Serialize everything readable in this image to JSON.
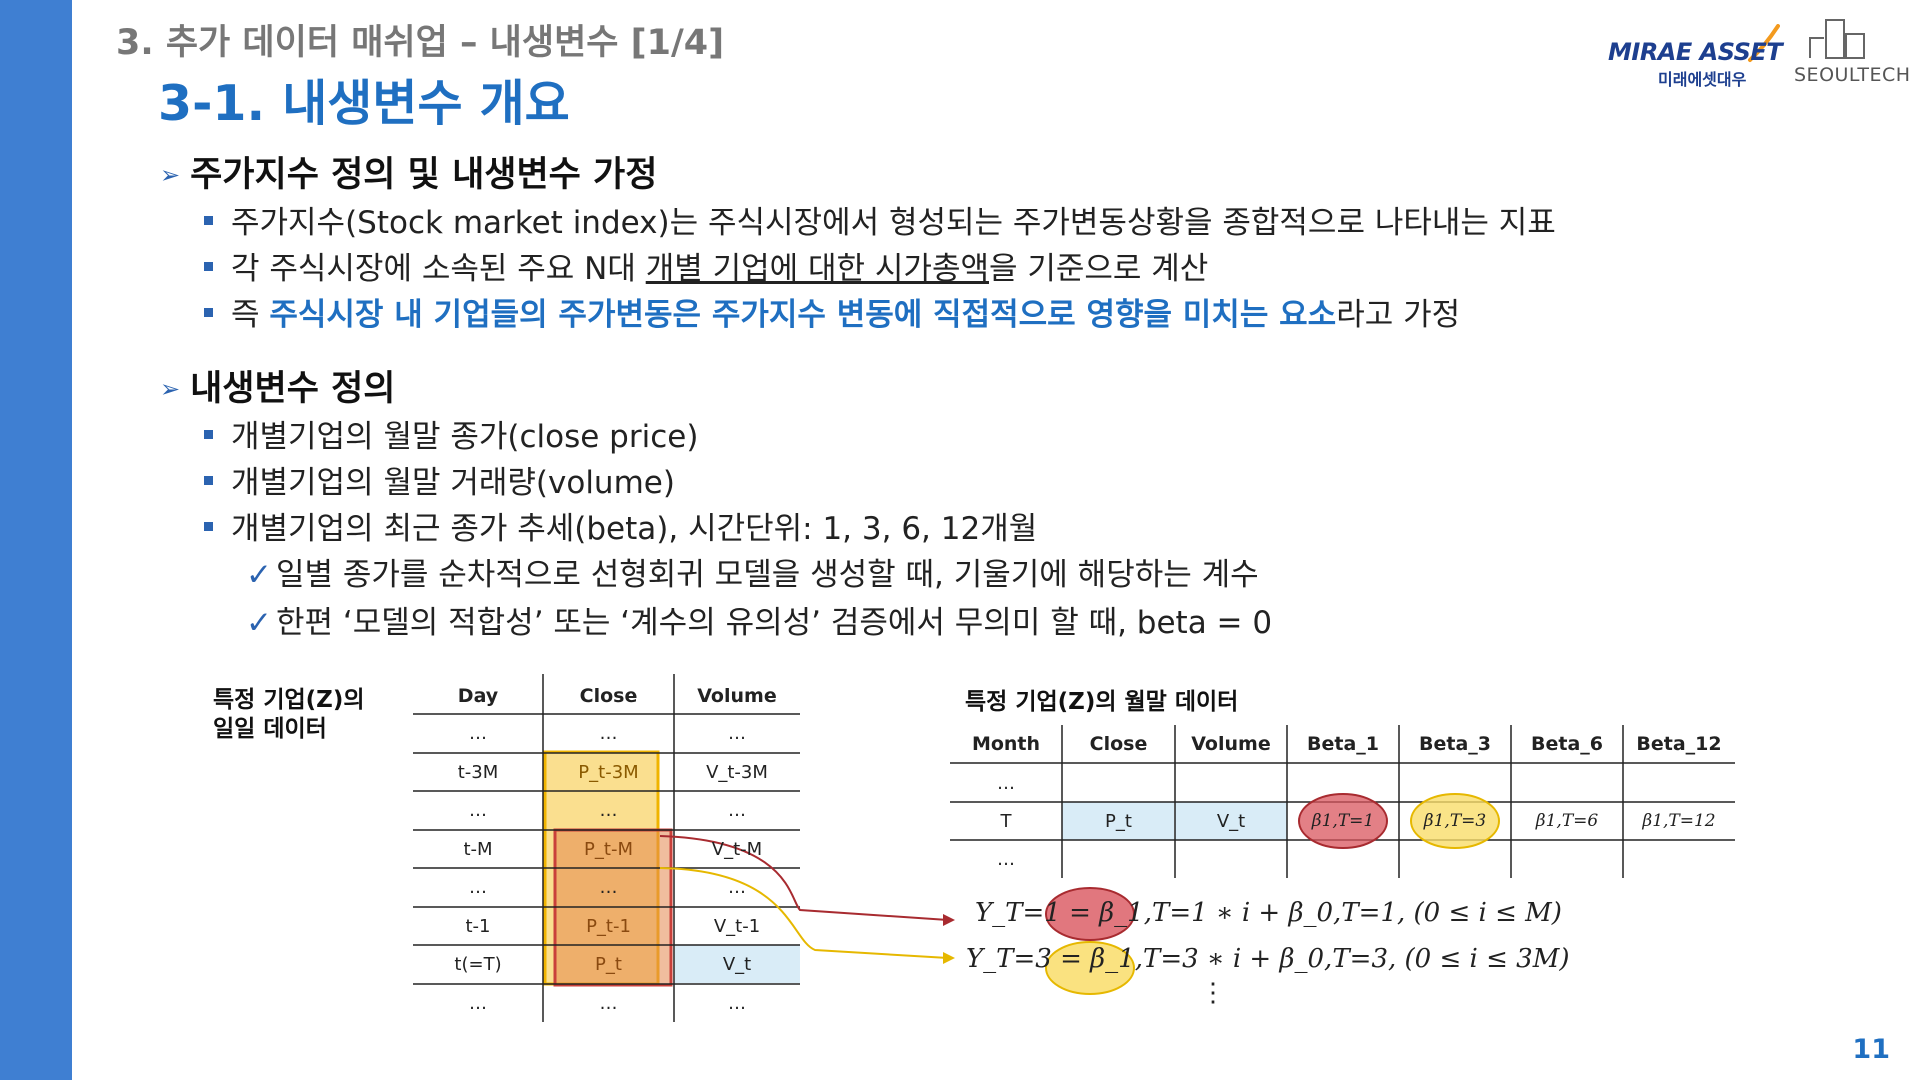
{
  "header": {
    "section": "3. 추가 데이터 매쉬업 – 내생변수 [1/4]",
    "title": "3-1. 내생변수 개요",
    "logo_mirae_en": "MIRAE ASSET",
    "logo_mirae_ko": "미래에셋대우",
    "logo_seoultech": "SEOULTECH"
  },
  "section1": {
    "heading": "주가지수 정의 및 내생변수 가정",
    "b1": "주가지수(Stock market index)는 주식시장에서 형성되는 주가변동상황을 종합적으로 나타내는 지표",
    "b2_pre": "각 주식시장에 소속된 주요 N대 ",
    "b2_ul": "개별 기업에 대한 시가총액",
    "b2_post": "을 기준으로 계산",
    "b3_pre": "즉 ",
    "b3_em": "주식시장 내 기업들의 주가변동은 주가지수 변동에 직접적으로 영향을 미치는 요소",
    "b3_post": "라고 가정"
  },
  "section2": {
    "heading": "내생변수 정의",
    "b1": "개별기업의 월말 종가(close price)",
    "b2": "개별기업의 월말 거래량(volume)",
    "b3": "개별기업의 최근 종가 추세(beta), 시간단위: 1, 3, 6, 12개월",
    "c1": "일별 종가를 순차적으로 선형회귀 모델을 생성할 때, 기울기에 해당하는 계수",
    "c2": "한편 ‘모델의 적합성’ 또는 ‘계수의 유의성’ 검증에서 무의미 할 때, beta = 0"
  },
  "daily": {
    "title_line1": "특정 기업(Z)의",
    "title_line2": "일일 데이터",
    "headers": [
      "Day",
      "Close",
      "Volume"
    ],
    "rows": [
      [
        "…",
        "…",
        "…"
      ],
      [
        "t-3M",
        "P_t-3M",
        "V_t-3M"
      ],
      [
        "…",
        "…",
        "…"
      ],
      [
        "t-M",
        "P_t-M",
        "V_t-M"
      ],
      [
        "…",
        "…",
        "…"
      ],
      [
        "t-1",
        "P_t-1",
        "V_t-1"
      ],
      [
        "t(=T)",
        "P_t",
        "V_t"
      ],
      [
        "…",
        "…",
        "…"
      ]
    ]
  },
  "monthly": {
    "title": "특정 기업(Z)의 월말 데이터",
    "headers": [
      "Month",
      "Close",
      "Volume",
      "Beta_1",
      "Beta_3",
      "Beta_6",
      "Beta_12"
    ],
    "rows": [
      [
        "…",
        "",
        "",
        "",
        "",
        "",
        ""
      ],
      [
        "T",
        "P_t",
        "V_t",
        "β1,T=1",
        "β1,T=3",
        "β1,T=6",
        "β1,T=12"
      ],
      [
        "…",
        "",
        "",
        "",
        "",
        "",
        ""
      ]
    ]
  },
  "equations": {
    "eq1": "Y_T=1 = β_1,T=1 ∗ i + β_0,T=1, (0 ≤ i ≤ M)",
    "eq2": "Y_T=3 = β_1,T=3 ∗ i + β_0,T=3, (0 ≤ i ≤ 3M)",
    "dots": "⋮"
  },
  "colors": {
    "accent_blue": "#1f6fc1",
    "sidebar_blue": "#3f7fd2",
    "highlight_yellow": "#f8d46a",
    "highlight_red": "#d24a4a",
    "cell_light_blue": "#d9ecf7"
  },
  "page_number": "11"
}
